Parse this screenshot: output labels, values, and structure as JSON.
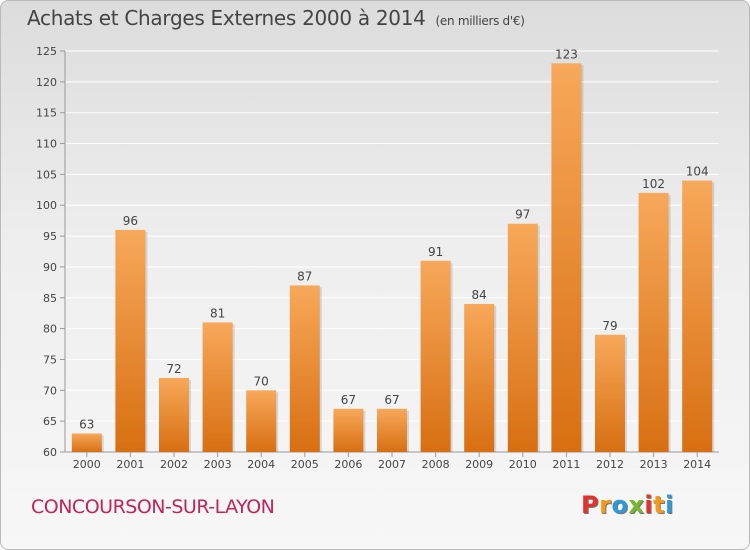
{
  "header": {
    "title": "Achats et Charges Externes 2000 à 2014",
    "unit": "(en milliers d'€)"
  },
  "footer": {
    "town": "CONCOURSON-SUR-LAYON",
    "logo": {
      "letters": [
        "P",
        "r",
        "o",
        "x",
        "i",
        "t",
        "i"
      ],
      "colors": [
        "#e2322a",
        "#f39a1c",
        "#2f98d6",
        "#76b82a",
        "#e2322a",
        "#f39a1c",
        "#2f98d6"
      ]
    }
  },
  "colors": {
    "bar_light": "#f7a85a",
    "bar_dark": "#d86f12",
    "axis": "#999999",
    "grid": "#ffffff"
  },
  "chart_data": {
    "type": "bar",
    "title": "Achats et Charges Externes 2000 à 2014",
    "subtitle": "(en milliers d'€)",
    "categories": [
      "2000",
      "2001",
      "2002",
      "2003",
      "2004",
      "2005",
      "2006",
      "2007",
      "2008",
      "2009",
      "2010",
      "2011",
      "2012",
      "2013",
      "2014"
    ],
    "values": [
      63,
      96,
      72,
      81,
      70,
      87,
      67,
      67,
      91,
      84,
      97,
      123,
      79,
      102,
      104
    ],
    "ylim": [
      60,
      125
    ],
    "yticks": [
      60,
      65,
      70,
      75,
      80,
      85,
      90,
      95,
      100,
      105,
      110,
      115,
      120,
      125
    ],
    "grid": "horizontal",
    "data_labels": true
  }
}
